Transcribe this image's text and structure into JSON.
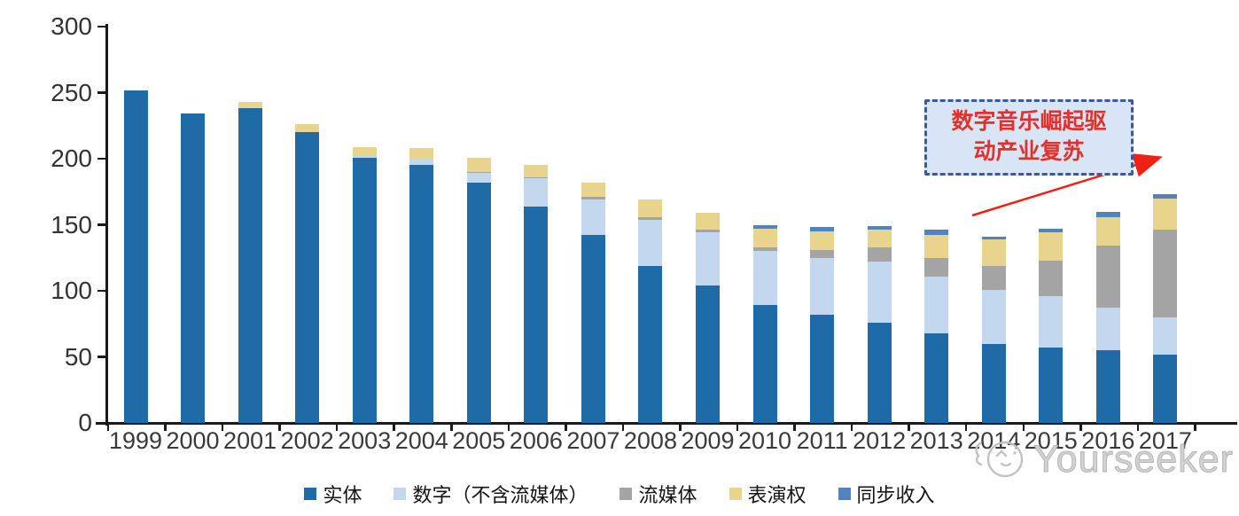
{
  "chart_data": {
    "type": "bar",
    "stacked": true,
    "categories": [
      "1999",
      "2000",
      "2001",
      "2002",
      "2003",
      "2004",
      "2005",
      "2006",
      "2007",
      "2008",
      "2009",
      "2010",
      "2011",
      "2012",
      "2013",
      "2014",
      "2015",
      "2016",
      "2017"
    ],
    "series": [
      {
        "key": "physical",
        "name": "实体",
        "color": "#1F6BA8",
        "values": [
          252,
          234,
          238,
          220,
          201,
          195,
          182,
          164,
          142,
          119,
          104,
          89,
          82,
          76,
          68,
          60,
          57,
          55,
          52
        ]
      },
      {
        "key": "digital-ex-streaming",
        "name": "数字（不含流媒体）",
        "color": "#C3D7EE",
        "values": [
          0,
          0,
          0,
          0,
          1,
          4,
          7,
          21,
          27,
          35,
          40,
          41,
          43,
          46,
          43,
          41,
          39,
          32,
          28
        ]
      },
      {
        "key": "streaming",
        "name": "流媒体",
        "color": "#A4A4A4",
        "values": [
          0,
          0,
          0,
          0,
          0,
          0,
          1,
          1,
          2,
          2,
          2,
          3,
          6,
          11,
          14,
          18,
          27,
          47,
          66
        ]
      },
      {
        "key": "performance-rights",
        "name": "表演权",
        "color": "#E9D48E",
        "values": [
          0,
          0,
          5,
          6,
          7,
          9,
          11,
          9,
          11,
          13,
          13,
          14,
          14,
          13,
          17,
          20,
          21,
          22,
          24
        ]
      },
      {
        "key": "sync-revenue",
        "name": "同步收入",
        "color": "#4E84C0",
        "values": [
          0,
          0,
          0,
          0,
          0,
          0,
          0,
          0,
          0,
          0,
          0,
          3,
          3,
          3,
          4,
          2,
          3,
          4,
          3
        ]
      }
    ],
    "ylim": [
      0,
      300
    ],
    "yticks": [
      0,
      50,
      100,
      150,
      200,
      250,
      300
    ],
    "grid": false,
    "legend_position": "bottom"
  },
  "annotation": {
    "lines": [
      "数字音乐崛起驱",
      "动产业复苏"
    ],
    "text_color": "#E2302B",
    "box_fill": "#D8E5F6",
    "box_border": "#3B57A8",
    "arrow_color": "#F02015"
  },
  "watermark": {
    "text": "Yourseeker",
    "logo": "mascot-cat-icon",
    "color": "#C4C4C4"
  }
}
